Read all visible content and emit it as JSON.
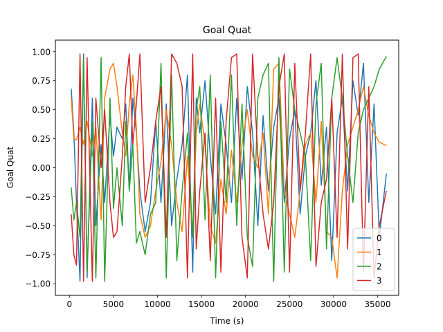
{
  "chart_data": {
    "type": "line",
    "title": "Goal Quat",
    "xlabel": "Time (s)",
    "ylabel": "Goal Quat",
    "xlim": [
      -1600,
      37400
    ],
    "ylim": [
      -1.1,
      1.1
    ],
    "xticks": [
      0,
      5000,
      10000,
      15000,
      20000,
      25000,
      30000,
      35000
    ],
    "xtick_labels": [
      "0",
      "5000",
      "10000",
      "15000",
      "20000",
      "25000",
      "30000",
      "35000"
    ],
    "yticks": [
      -1.0,
      -0.75,
      -0.5,
      -0.25,
      0.0,
      0.25,
      0.5,
      0.75,
      1.0
    ],
    "ytick_labels": [
      "−1.00",
      "−0.75",
      "−0.50",
      "−0.25",
      "0.00",
      "0.25",
      "0.50",
      "0.75",
      "1.00"
    ],
    "grid": false,
    "legend_position": "lower-right",
    "series": [
      {
        "name": "0",
        "color": "#1f77b4",
        "x": [
          200,
          500,
          800,
          1200,
          1600,
          2000,
          2600,
          3000,
          3600,
          4000,
          4600,
          5000,
          5400,
          6000,
          6400,
          6800,
          7200,
          7600,
          8000,
          8600,
          9200,
          9800,
          10400,
          11000,
          11600,
          12200,
          12800,
          13400,
          14000,
          14400,
          14800,
          15400,
          16000,
          16600,
          17200,
          17800,
          18400,
          19000,
          19600,
          20200,
          20800,
          21400,
          22000,
          22600,
          23200,
          23800,
          24400,
          25000,
          25600,
          26200,
          26800,
          27400,
          28000,
          28600,
          29200,
          29800,
          30400,
          31000,
          31600,
          32200,
          32800,
          33400,
          34000,
          34600,
          35200,
          36000
        ],
        "y": [
          0.68,
          0.3,
          -0.3,
          -0.98,
          0.98,
          -0.95,
          0.6,
          -0.5,
          0.2,
          -0.3,
          0.45,
          0.1,
          0.35,
          0.25,
          0.55,
          -0.2,
          0.6,
          0.3,
          -0.2,
          -0.55,
          -0.3,
          0.4,
          -0.3,
          0.55,
          -0.5,
          -0.1,
          0.2,
          0.8,
          -0.9,
          0.6,
          0.3,
          0.75,
          0.1,
          -0.4,
          0.55,
          0.2,
          -0.3,
          0.6,
          -0.1,
          0.7,
          0.3,
          -0.5,
          0.45,
          -0.2,
          0.35,
          0.6,
          -0.3,
          0.25,
          0.5,
          -0.4,
          0.1,
          0.3,
          0.75,
          -0.15,
          0.35,
          -0.8,
          0.3,
          0.6,
          -0.2,
          0.75,
          0.45,
          0.9,
          -0.3,
          0.55,
          -0.6,
          -0.05
        ]
      },
      {
        "name": "1",
        "color": "#ff7f0e",
        "x": [
          200,
          500,
          800,
          1200,
          1600,
          2000,
          2600,
          3000,
          3600,
          4000,
          4600,
          5000,
          5400,
          6000,
          6400,
          6800,
          7200,
          7600,
          8000,
          8600,
          9200,
          9800,
          10400,
          11000,
          11600,
          12200,
          12800,
          13400,
          14000,
          14400,
          14800,
          15400,
          16000,
          16600,
          17200,
          17800,
          18400,
          19000,
          19600,
          20200,
          20800,
          21400,
          22000,
          22600,
          23200,
          23800,
          24400,
          25000,
          25600,
          26200,
          26800,
          27400,
          28000,
          28600,
          29200,
          29800,
          30400,
          31000,
          31600,
          32200,
          32800,
          33400,
          34000,
          34600,
          35200,
          36000
        ],
        "y": [
          0.6,
          0.25,
          0.24,
          0.35,
          0.2,
          0.4,
          0.1,
          0.35,
          -0.45,
          0.6,
          0.85,
          0.9,
          0.7,
          0.3,
          0.1,
          0.55,
          0.8,
          0.35,
          -0.4,
          -0.6,
          -0.5,
          -0.2,
          0.05,
          0.5,
          0.2,
          -0.3,
          -0.55,
          0.1,
          -0.6,
          0.3,
          0.55,
          0.2,
          -0.5,
          -0.65,
          -0.1,
          -0.4,
          0.15,
          -0.3,
          0.2,
          0.5,
          0.1,
          0.0,
          0.3,
          -0.4,
          0.85,
          0.9,
          -0.2,
          -0.4,
          -0.6,
          -0.2,
          0.2,
          0.3,
          -0.3,
          0.4,
          -0.55,
          -0.6,
          -0.95,
          -0.2,
          0.2,
          0.35,
          0.5,
          0.7,
          0.45,
          0.3,
          0.22,
          0.19
        ]
      },
      {
        "name": "2",
        "color": "#2ca02c",
        "x": [
          200,
          500,
          800,
          1200,
          1600,
          2000,
          2600,
          3000,
          3600,
          4000,
          4600,
          5000,
          5400,
          6000,
          6400,
          6800,
          7200,
          7600,
          8000,
          8600,
          9200,
          9800,
          10400,
          11000,
          11600,
          12200,
          12800,
          13400,
          14000,
          14400,
          14800,
          15400,
          16000,
          16600,
          17200,
          17800,
          18400,
          19000,
          19600,
          20200,
          20800,
          21400,
          22000,
          22600,
          23200,
          23800,
          24400,
          25000,
          25600,
          26200,
          26800,
          27400,
          28000,
          28600,
          29200,
          29800,
          30400,
          31000,
          31600,
          32200,
          32800,
          33400,
          34000,
          34600,
          35200,
          36000
        ],
        "y": [
          -0.17,
          -0.45,
          -0.3,
          -0.6,
          0.95,
          -0.9,
          0.4,
          -0.95,
          0.95,
          -0.98,
          0.6,
          -0.35,
          0.0,
          -0.5,
          0.4,
          -0.2,
          0.2,
          -0.65,
          -0.55,
          -0.75,
          -0.4,
          -0.3,
          0.9,
          -0.95,
          0.8,
          -0.8,
          -0.2,
          0.3,
          -0.6,
          0.5,
          0.7,
          -0.45,
          0.8,
          -0.95,
          0.4,
          -0.3,
          0.8,
          -0.5,
          0.55,
          -0.6,
          -0.85,
          0.6,
          0.8,
          0.9,
          -0.98,
          0.95,
          -0.9,
          0.85,
          0.5,
          0.3,
          0.1,
          -0.8,
          0.55,
          0.9,
          -0.7,
          0.6,
          0.95,
          0.6,
          0.1,
          -0.3,
          0.3,
          0.5,
          0.6,
          0.7,
          0.85,
          0.96
        ]
      },
      {
        "name": "3",
        "color": "#d62728",
        "x": [
          200,
          500,
          800,
          1200,
          1600,
          2000,
          2600,
          3000,
          3600,
          4000,
          4600,
          5000,
          5400,
          6000,
          6400,
          6800,
          7200,
          7600,
          8000,
          8600,
          9200,
          9800,
          10400,
          11000,
          11600,
          12200,
          12800,
          13400,
          14000,
          14400,
          14800,
          15400,
          16000,
          16600,
          17200,
          17800,
          18400,
          19000,
          19600,
          20200,
          20800,
          21400,
          22000,
          22600,
          23200,
          23800,
          24400,
          25000,
          25600,
          26200,
          26800,
          27400,
          28000,
          28600,
          29200,
          29800,
          30400,
          31000,
          31600,
          32200,
          32800,
          33400,
          34000,
          34600,
          35200,
          36000
        ],
        "y": [
          -0.4,
          -0.75,
          -0.84,
          0.98,
          -0.98,
          0.95,
          -0.98,
          0.6,
          0.0,
          0.5,
          -0.3,
          -0.6,
          -0.55,
          0.1,
          0.7,
          0.98,
          0.2,
          0.55,
          0.98,
          -0.3,
          0.0,
          0.4,
          0.7,
          -0.6,
          0.98,
          0.9,
          0.7,
          -0.95,
          0.98,
          -0.7,
          -0.2,
          0.3,
          -0.8,
          0.6,
          -0.9,
          0.4,
          0.95,
          0.98,
          -0.6,
          -0.95,
          0.98,
          0.1,
          -0.4,
          -0.7,
          -0.3,
          0.7,
          0.98,
          -0.9,
          0.9,
          -0.2,
          0.3,
          0.98,
          -0.85,
          -0.3,
          -0.1,
          0.6,
          -0.6,
          0.98,
          -0.7,
          0.95,
          0.98,
          -0.9,
          0.7,
          -0.95,
          -0.5,
          -0.2
        ]
      }
    ]
  }
}
